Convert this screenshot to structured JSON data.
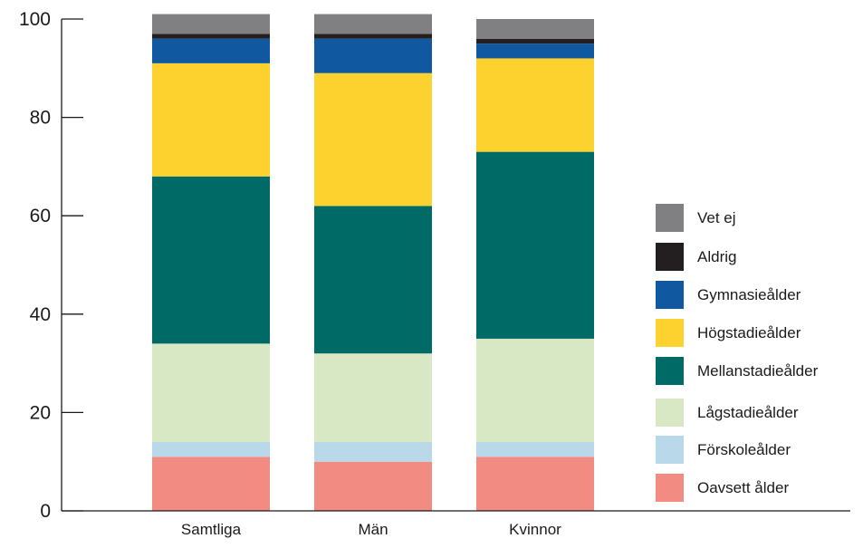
{
  "chart_data": {
    "type": "bar",
    "stacked": true,
    "title": "",
    "xlabel": "",
    "ylabel": "",
    "ylim": [
      0,
      100
    ],
    "yticks": [
      0,
      20,
      40,
      60,
      80,
      100
    ],
    "grid": false,
    "legend_position": "right",
    "categories": [
      "Samtliga",
      "Män",
      "Kvinnor"
    ],
    "series": [
      {
        "name": "Oavsett ålder",
        "color": "#f28b82",
        "values": [
          11,
          10,
          11
        ]
      },
      {
        "name": "Förskoleålder",
        "color": "#b9d9ea",
        "values": [
          3,
          4,
          3
        ]
      },
      {
        "name": "Lågstadieålder",
        "color": "#d9e8c4",
        "values": [
          20,
          18,
          21
        ]
      },
      {
        "name": "Mellanstadieålder",
        "color": "#006b66",
        "values": [
          34,
          30,
          38
        ]
      },
      {
        "name": "Högstadieålder",
        "color": "#fdd22f",
        "values": [
          23,
          27,
          19
        ]
      },
      {
        "name": "Gymnasieålder",
        "color": "#1059a0",
        "values": [
          5,
          7,
          3
        ]
      },
      {
        "name": "Aldrig",
        "color": "#231f20",
        "values": [
          1,
          1,
          1
        ]
      },
      {
        "name": "Vet ej",
        "color": "#808083",
        "values": [
          4,
          4,
          4
        ]
      }
    ]
  }
}
